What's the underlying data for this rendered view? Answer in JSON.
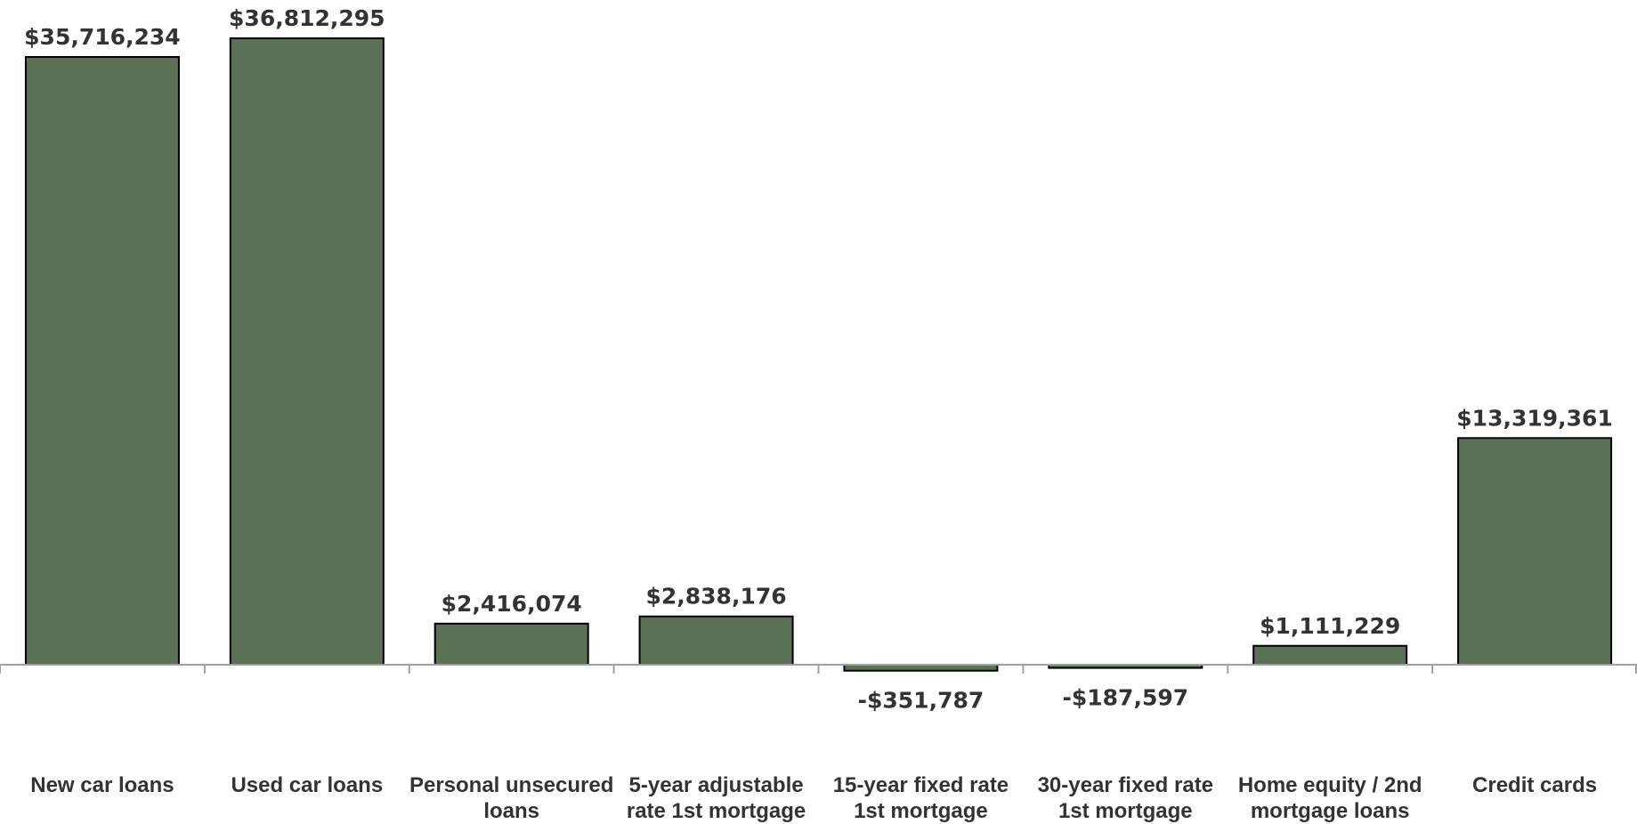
{
  "chart_data": {
    "type": "bar",
    "categories": [
      [
        "New car loans"
      ],
      [
        "Used car loans"
      ],
      [
        "Personal unsecured",
        "loans"
      ],
      [
        "5-year adjustable",
        "rate 1st mortgage"
      ],
      [
        "15-year fixed rate",
        "1st mortgage"
      ],
      [
        "30-year fixed rate",
        "1st mortgage"
      ],
      [
        "Home equity / 2nd",
        "mortgage loans"
      ],
      [
        "Credit cards"
      ]
    ],
    "values": [
      35716234,
      36812295,
      2416074,
      2838176,
      -351787,
      -187597,
      1111229,
      13319361
    ],
    "data_labels": [
      "$35,716,234",
      "$36,812,295",
      "$2,416,074",
      "$2,838,176",
      "-$351,787",
      "-$187,597",
      "$1,111,229",
      "$13,319,361"
    ],
    "title": "",
    "xlabel": "",
    "ylabel": "",
    "ylim": [
      -1500000,
      40000000
    ],
    "grid": false,
    "legend": "none",
    "colors": {
      "bar": "#5a7156",
      "bar_border": "#000000",
      "axis": "#a0a0a0",
      "text": "#333333"
    }
  }
}
